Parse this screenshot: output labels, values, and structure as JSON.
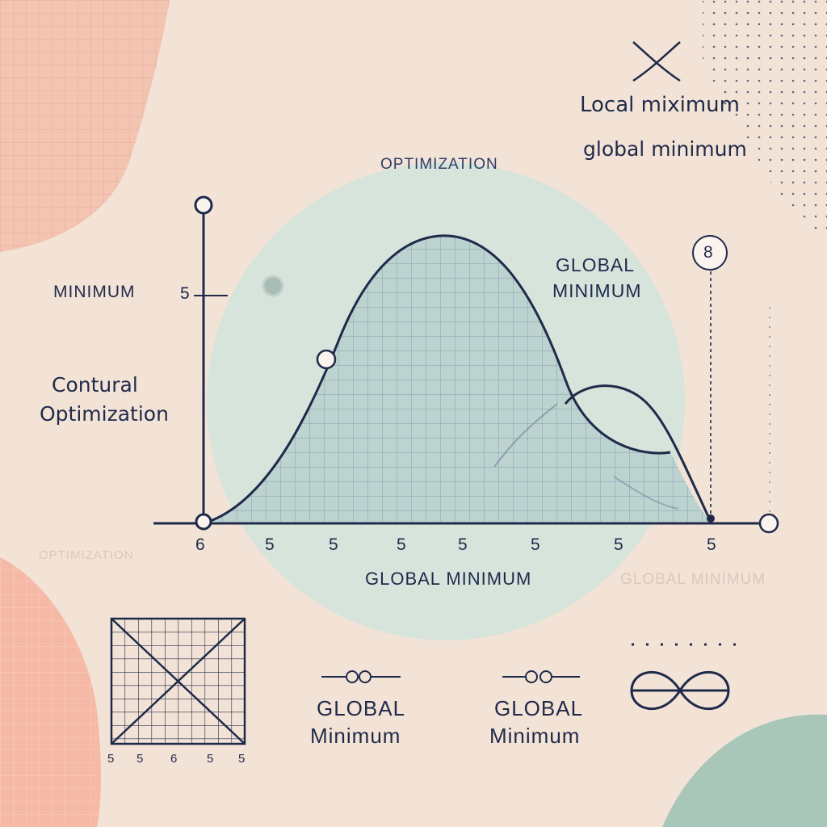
{
  "header": {
    "title": "OPTIMIZATION"
  },
  "legend": {
    "local_max_label": "Local miximum",
    "global_min_label": "global minimum"
  },
  "labels": {
    "minimum_left": "MINIMUM",
    "contural_line1": "Contural",
    "contural_line2": "Optimization",
    "global_minimum_peak_line1": "GLOBAL",
    "global_minimum_peak_line2": "MINIMUM",
    "badge_number": "8",
    "global_minimum_bottom": "GLOBAL MINIMUM",
    "faded_left": "OPTIMIZATION",
    "faded_right": "GLOBAL MINIMUM",
    "bottom_caption1_line1": "GLOBAL",
    "bottom_caption1_line2": "Minimum",
    "bottom_caption2_line1": "GLOBAL",
    "bottom_caption2_line2": "Minimum"
  },
  "axes": {
    "y_tick_label": "5",
    "x_tick_labels": [
      "6",
      "5",
      "5",
      "5",
      "5",
      "5",
      "5",
      "5"
    ]
  },
  "mini_grid": {
    "tick_labels": [
      "5",
      "5",
      "6",
      "5",
      "5"
    ]
  },
  "icons": {
    "top_right": "cross-icon",
    "bottom_right": "infinity-icon",
    "caption_glyph": "link-icon"
  },
  "colors": {
    "background": "#f3e3d6",
    "circle": "#d6e4dc",
    "ink": "#1f2a4a",
    "peach": "#f4b9a4",
    "sage": "#a9c7b9"
  }
}
